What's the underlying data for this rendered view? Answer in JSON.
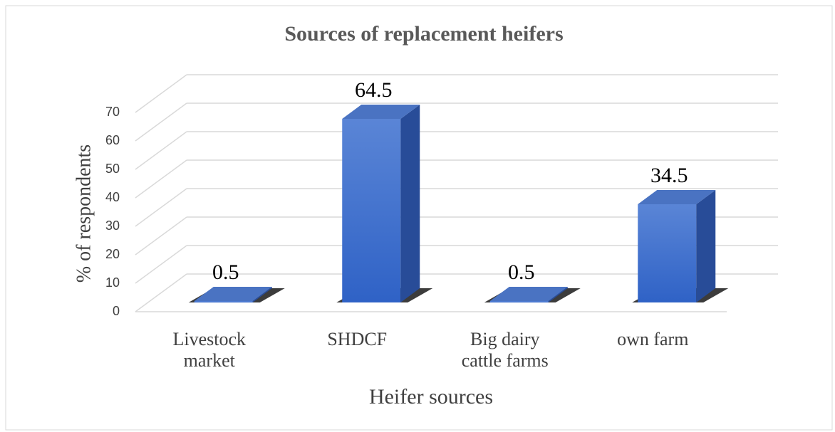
{
  "chart_data": {
    "type": "bar",
    "title": "Sources of replacement heifers",
    "x_label": "Heifer sources",
    "y_label": "% of respondents",
    "categories": [
      "Livestock market",
      "SHDCF",
      "Big dairy cattle farms",
      "own farm"
    ],
    "values": [
      0.5,
      64.5,
      0.5,
      34.5
    ],
    "color": "#3a6fd0",
    "ylim": [
      0,
      70
    ],
    "yticks": [
      0,
      10,
      20,
      30,
      40,
      50,
      60,
      70
    ],
    "grid": true
  }
}
